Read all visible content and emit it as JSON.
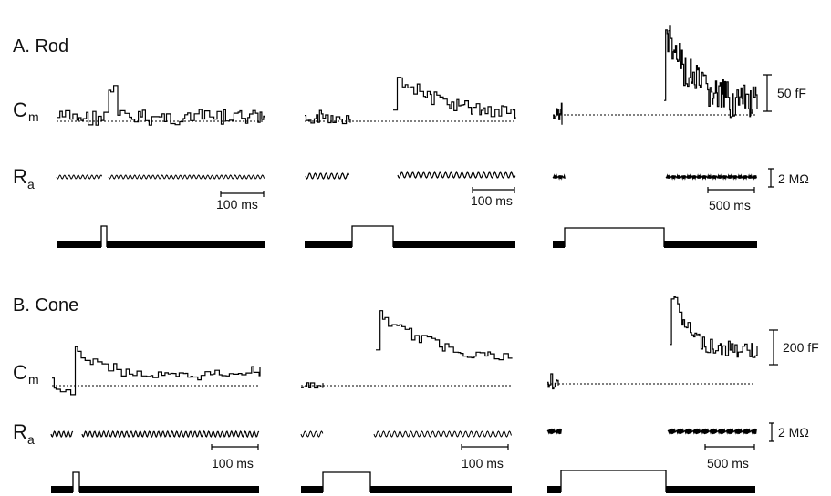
{
  "panels": {
    "a": {
      "title": "A. Rod"
    },
    "b": {
      "title": "B. Cone"
    }
  },
  "labels": {
    "cm_main": "C",
    "cm_sub": "m",
    "ra_main": "R",
    "ra_sub": "a"
  },
  "scale_bars": {
    "rod_cap": "50 fF",
    "cone_cap": "200 fF",
    "ra_rod": "2 MΩ",
    "ra_cone": "2 MΩ",
    "t100_1": "100 ms",
    "t100_2": "100 ms",
    "t500_rod": "500 ms",
    "t100_3": "100 ms",
    "t100_4": "100 ms",
    "t500_cone": "500 ms"
  }
}
